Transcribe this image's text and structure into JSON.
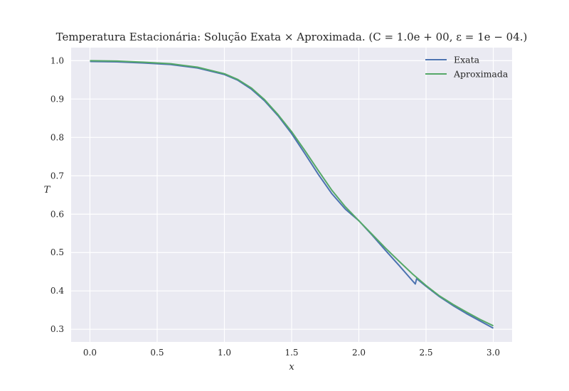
{
  "chart_data": {
    "type": "line",
    "title": "Temperatura Estacionária: Solução Exata × Aproximada. (C = 1.0e + 00, ε = 1e − 04.)",
    "xlabel": "x",
    "ylabel": "T",
    "xlim": [
      -0.14,
      3.14
    ],
    "ylim": [
      0.267,
      1.034
    ],
    "xticks": [
      0.0,
      0.5,
      1.0,
      1.5,
      2.0,
      2.5,
      3.0
    ],
    "xtick_labels": [
      "0.0",
      "0.5",
      "1.0",
      "1.5",
      "2.0",
      "2.5",
      "3.0"
    ],
    "yticks": [
      0.3,
      0.4,
      0.5,
      0.6,
      0.7,
      0.8,
      0.9,
      1.0
    ],
    "ytick_labels": [
      "0.3",
      "0.4",
      "0.5",
      "0.6",
      "0.7",
      "0.8",
      "0.9",
      "1.0"
    ],
    "grid": true,
    "legend_position": "top-right",
    "colors": {
      "background": "#EAEAF2",
      "grid": "#FFFFFF",
      "Exata": "#4C72B0",
      "Aproximada": "#55A868"
    },
    "series": [
      {
        "name": "Exata",
        "color": "#4C72B0",
        "x": [
          0.0,
          0.2,
          0.4,
          0.6,
          0.8,
          1.0,
          1.1,
          1.2,
          1.3,
          1.4,
          1.5,
          1.6,
          1.7,
          1.8,
          1.9,
          2.0,
          2.1,
          2.2,
          2.3,
          2.42,
          2.43,
          2.5,
          2.6,
          2.7,
          2.8,
          2.9,
          3.0
        ],
        "y": [
          0.998,
          0.997,
          0.994,
          0.99,
          0.981,
          0.964,
          0.949,
          0.926,
          0.895,
          0.856,
          0.81,
          0.757,
          0.703,
          0.653,
          0.613,
          0.583,
          0.545,
          0.505,
          0.466,
          0.418,
          0.432,
          0.412,
          0.385,
          0.362,
          0.341,
          0.322,
          0.303
        ]
      },
      {
        "name": "Aproximada",
        "color": "#55A868",
        "x": [
          0.0,
          0.2,
          0.4,
          0.6,
          0.8,
          1.0,
          1.1,
          1.2,
          1.3,
          1.4,
          1.5,
          1.6,
          1.7,
          1.8,
          1.9,
          2.0,
          2.1,
          2.2,
          2.3,
          2.4,
          2.5,
          2.6,
          2.7,
          2.8,
          2.9,
          3.0
        ],
        "y": [
          1.0,
          0.999,
          0.996,
          0.992,
          0.983,
          0.966,
          0.951,
          0.929,
          0.898,
          0.859,
          0.815,
          0.765,
          0.713,
          0.662,
          0.619,
          0.583,
          0.547,
          0.511,
          0.477,
          0.444,
          0.414,
          0.387,
          0.365,
          0.345,
          0.326,
          0.309
        ]
      }
    ]
  }
}
